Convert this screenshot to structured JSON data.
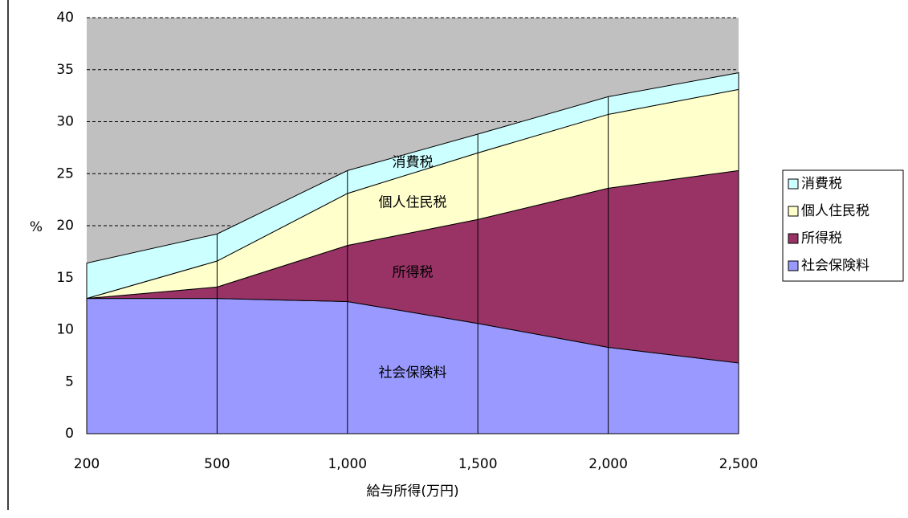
{
  "chart_data": {
    "type": "stacked_area",
    "x_label": "給与所得(万円)",
    "y_label": "%",
    "categories": [
      "200",
      "500",
      "1,000",
      "1,500",
      "2,000",
      "2,500"
    ],
    "series": [
      {
        "name": "社会保険料",
        "color": "#9999ff",
        "values": [
          13.0,
          13.0,
          12.7,
          10.6,
          8.3,
          6.8
        ]
      },
      {
        "name": "所得税",
        "color": "#993366",
        "values": [
          0,
          1.1,
          5.4,
          10.0,
          15.3,
          18.5
        ]
      },
      {
        "name": "個人住民税",
        "color": "#ffffcc",
        "values": [
          0,
          2.5,
          5.0,
          6.4,
          7.1,
          7.8
        ]
      },
      {
        "name": "消費税",
        "color": "#ccffff",
        "values": [
          3.4,
          2.6,
          2.2,
          1.8,
          1.7,
          1.6
        ]
      }
    ],
    "ylim": [
      0,
      40
    ],
    "yticks": [
      0,
      5,
      10,
      15,
      20,
      25,
      30,
      35,
      40
    ],
    "grid": true,
    "legend": "right",
    "background": "#c0c0c0"
  }
}
